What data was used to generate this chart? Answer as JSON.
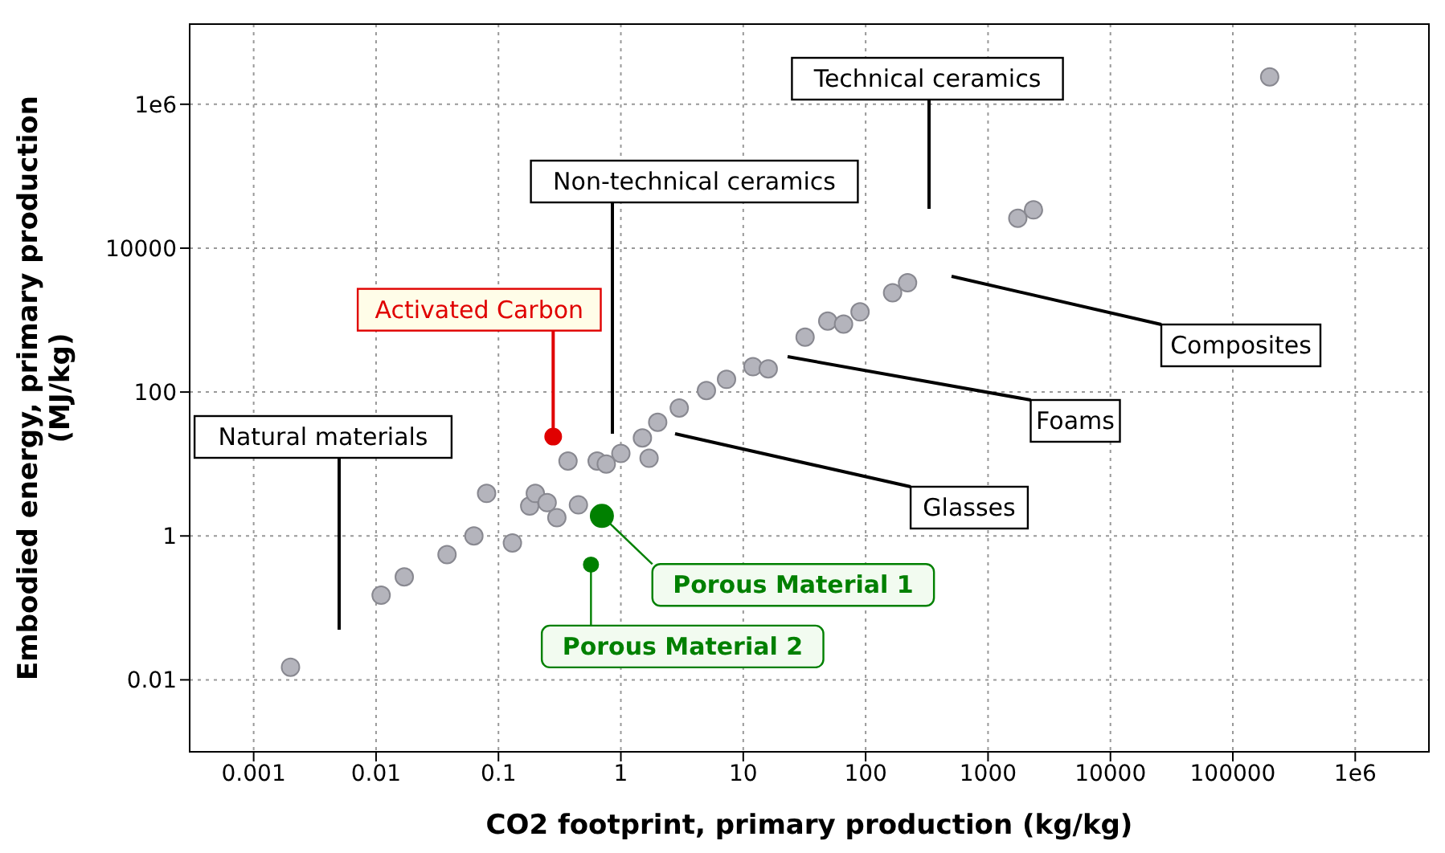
{
  "chart_data": {
    "type": "scatter",
    "xlabel": "CO2 footprint, primary production (kg/kg)",
    "ylabel": "Embodied energy, primary production (MJ/kg)",
    "log": "xy",
    "grid": true,
    "marker": "circle",
    "xlim": [
      0.0003,
      4000000
    ],
    "ylim": [
      0.001,
      13000000
    ],
    "xticks": [
      0.001,
      0.01,
      0.1,
      1,
      10,
      100,
      1000,
      10000,
      100000,
      {
        "value": 1000000,
        "label": "1e6"
      }
    ],
    "yticks": [
      0.01,
      1,
      100,
      10000,
      {
        "value": 1000000,
        "label": "1e6"
      }
    ],
    "annotations": [
      "Technical ceramics",
      "Non-technical ceramics",
      "Natural materials",
      "Composites",
      "Foams",
      "Glasses"
    ],
    "series": [
      {
        "color": "#b4b4bc",
        "x": [
          0.002,
          0.011,
          0.017,
          0.038,
          0.063,
          0.13,
          0.08,
          0.18,
          0.2,
          0.25,
          0.3,
          0.45,
          0.37,
          0.64,
          0.76,
          1.7,
          1.0,
          1.5,
          2.0,
          3.0,
          5.0,
          7.3,
          12,
          16,
          32,
          49,
          66,
          90,
          166,
          220,
          1750,
          2350,
          200000
        ],
        "values": [
          0.015,
          0.15,
          0.27,
          0.55,
          1,
          0.8,
          3.9,
          2.6,
          3.9,
          2.9,
          1.8,
          2.7,
          11,
          11,
          10,
          12,
          14,
          23,
          38,
          60,
          105,
          150,
          225,
          210,
          580,
          970,
          880,
          1300,
          2400,
          3300,
          26000,
          34000,
          2400000
        ]
      },
      {
        "name": "Activated Carbon",
        "color": "#e00000",
        "x": [
          0.28
        ],
        "values": [
          24
        ]
      },
      {
        "name": "Porous Material 1",
        "color": "#008000",
        "x": [
          0.7
        ],
        "values": [
          1.9
        ]
      },
      {
        "name": "Porous Material 2",
        "color": "#008000",
        "x": [
          0.57
        ],
        "values": [
          0.4
        ]
      }
    ]
  }
}
